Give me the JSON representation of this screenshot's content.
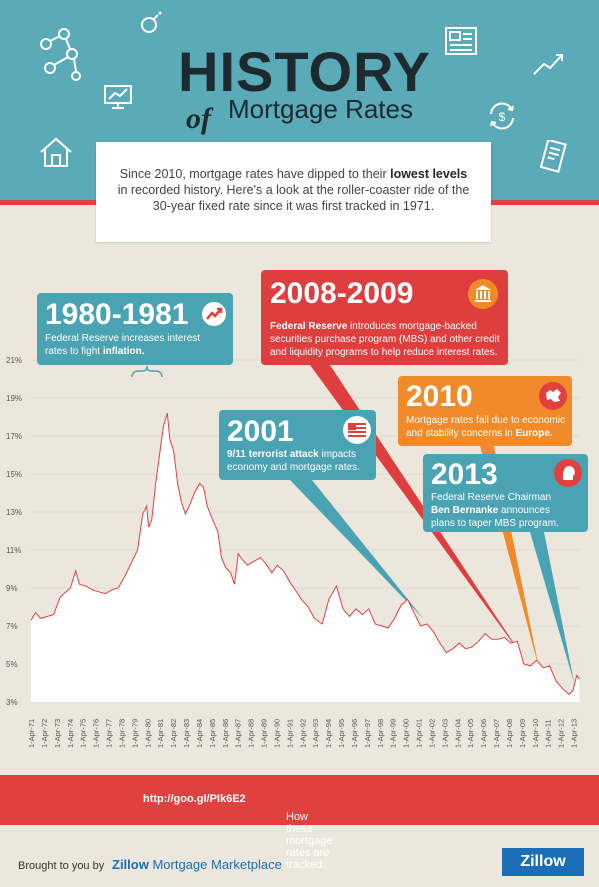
{
  "header": {
    "title": "HISTORY",
    "title_of": "of",
    "subtitle": "Mortgage Rates"
  },
  "intro": {
    "text_before": "Since 2010, mortgage rates have dipped to their ",
    "text_bold": "lowest levels",
    "text_after": " in recorded history. Here's a look at the roller-coaster ride of the 30-year fixed rate since it was first tracked in 1971."
  },
  "callouts": {
    "c1980": {
      "year": "1980-1981",
      "text_before": "Federal Reserve increases interest rates to fight ",
      "text_bold": "inflation."
    },
    "c2008": {
      "year": "2008-2009",
      "text_bold": "Federal Reserve",
      "text_after": " introduces mortgage-backed securities purchase program (MBS) and other credit and liquidity programs to help reduce interest rates."
    },
    "c2001": {
      "year": "2001",
      "text_bold": "9/11 terrorist attack",
      "text_after": " impacts economy and mortgage rates."
    },
    "c2010": {
      "year": "2010",
      "text_before": "Mortgage rates fall due to economic and stability concerns in ",
      "text_bold": "Europe."
    },
    "c2013": {
      "year": "2013",
      "text_before": "Federal Reserve Chairman ",
      "text_bold": "Ben Bernanke",
      "text_after": " announces plans to taper MBS program."
    }
  },
  "colors": {
    "header_bg": "#5aaab7",
    "accent_red": "#e0413f",
    "accent_teal": "#4aa3b3",
    "accent_orange": "#f08a2a",
    "line": "#e0413f",
    "zillow_blue": "#1b6db5"
  },
  "footer": {
    "tracked_label": "How these mortgage rates are tracked: ",
    "tracked_link": "http://goo.gl/PIk6E2",
    "brought_by": "Brought to you by",
    "brand": "Zillow",
    "brand_rest": " Mortgage Marketplace",
    "logo": "Zillow"
  },
  "chart_data": {
    "type": "area",
    "y_ticks": [
      "21%",
      "19%",
      "17%",
      "15%",
      "13%",
      "11%",
      "9%",
      "7%",
      "5%",
      "3%"
    ],
    "ylim": [
      3,
      21
    ],
    "x_ticks": [
      "1-Apr-71",
      "1-Apr-72",
      "1-Apr-73",
      "1-Apr-74",
      "1-Apr-75",
      "1-Apr-76",
      "1-Apr-77",
      "1-Apr-78",
      "1-Apr-79",
      "1-Apr-80",
      "1-Apr-81",
      "1-Apr-82",
      "1-Apr-83",
      "1-Apr-84",
      "1-Apr-85",
      "1-Apr-86",
      "1-Apr-87",
      "1-Apr-88",
      "1-Apr-89",
      "1-Apr-90",
      "1-Apr-91",
      "1-Apr-92",
      "1-Apr-93",
      "1-Apr-94",
      "1-Apr-95",
      "1-Apr-96",
      "1-Apr-97",
      "1-Apr-98",
      "1-Apr-99",
      "1-Apr-00",
      "1-Apr-01",
      "1-Apr-02",
      "1-Apr-03",
      "1-Apr-04",
      "1-Apr-05",
      "1-Apr-06",
      "1-Apr-07",
      "1-Apr-08",
      "1-Apr-09",
      "1-Apr-10",
      "1-Apr-11",
      "1-Apr-12",
      "1-Apr-13"
    ],
    "series": [
      {
        "x": [
          1971.25,
          1971.6,
          1972.0,
          1972.5,
          1973.0,
          1973.5,
          1973.8,
          1974.3,
          1974.7,
          1975.0,
          1975.5,
          1976.0,
          1976.5,
          1977.0,
          1977.5,
          1978.0,
          1978.5,
          1979.0,
          1979.5,
          1979.9,
          1980.2,
          1980.35,
          1980.6,
          1980.9,
          1981.2,
          1981.5,
          1981.8,
          1982.0,
          1982.3,
          1982.6,
          1982.9,
          1983.2,
          1983.5,
          1983.9,
          1984.3,
          1984.6,
          1984.9,
          1985.3,
          1985.7,
          1986.0,
          1986.3,
          1986.7,
          1987.0,
          1987.3,
          1987.6,
          1988.0,
          1988.5,
          1989.0,
          1989.4,
          1989.9,
          1990.3,
          1990.8,
          1991.3,
          1991.8,
          1992.2,
          1992.7,
          1993.2,
          1993.8,
          1994.3,
          1994.9,
          1995.4,
          1995.9,
          1996.4,
          1996.9,
          1997.4,
          1997.9,
          1998.4,
          1998.9,
          1999.4,
          1999.9,
          2000.4,
          2000.9,
          2001.4,
          2001.9,
          2002.4,
          2002.9,
          2003.4,
          2003.9,
          2004.4,
          2004.9,
          2005.4,
          2005.9,
          2006.4,
          2006.9,
          2007.4,
          2007.9,
          2008.4,
          2008.9,
          2009.4,
          2009.9,
          2010.4,
          2010.9,
          2011.4,
          2011.9,
          2012.4,
          2012.9,
          2013.2,
          2013.5,
          2013.7
        ],
        "values": [
          7.3,
          7.7,
          7.4,
          7.5,
          7.6,
          8.5,
          8.7,
          9.0,
          9.9,
          9.2,
          9.1,
          8.9,
          8.8,
          8.7,
          8.9,
          9.0,
          9.6,
          10.3,
          11.0,
          12.9,
          13.3,
          12.2,
          12.6,
          14.5,
          16.0,
          17.5,
          18.2,
          16.8,
          16.2,
          14.5,
          13.5,
          12.9,
          13.3,
          14.0,
          14.5,
          14.3,
          13.3,
          12.6,
          12.0,
          10.6,
          10.1,
          9.8,
          9.2,
          10.8,
          10.5,
          10.2,
          10.4,
          10.6,
          10.3,
          9.8,
          10.2,
          9.9,
          9.3,
          8.8,
          8.4,
          8.0,
          7.4,
          7.1,
          8.4,
          9.1,
          7.9,
          7.5,
          7.9,
          7.6,
          7.9,
          7.1,
          7.0,
          6.9,
          7.4,
          8.1,
          8.4,
          7.7,
          7.0,
          7.1,
          6.7,
          6.1,
          5.6,
          5.8,
          6.1,
          5.8,
          5.9,
          6.2,
          6.6,
          6.3,
          6.3,
          6.4,
          6.1,
          6.2,
          5.0,
          4.9,
          5.2,
          4.8,
          4.9,
          4.1,
          3.7,
          3.4,
          3.6,
          4.4,
          4.2
        ]
      }
    ],
    "grid": "y"
  }
}
